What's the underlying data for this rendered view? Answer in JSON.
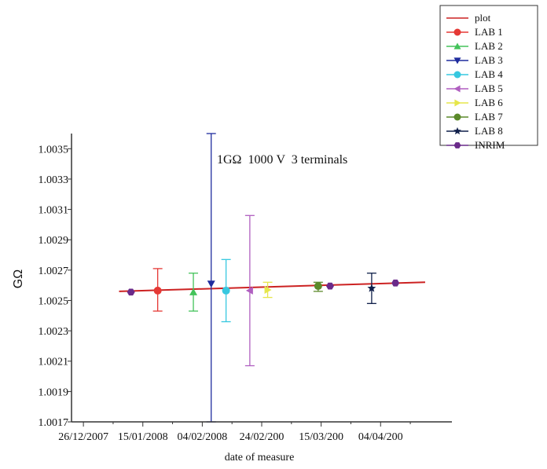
{
  "chart_data": {
    "type": "scatter",
    "title": "",
    "annotation": "1GΩ  1000 V  3 terminals",
    "xlabel": "date of measure",
    "ylabel": "GΩ",
    "x_tick_labels": [
      "26/12/2007",
      "15/01/2008",
      "04/02/2008",
      "24/02/200",
      "15/03/200",
      "04/04/200"
    ],
    "x_ticks": [
      "2007-12-26",
      "2008-01-15",
      "2008-02-04",
      "2008-02-24",
      "2008-03-15",
      "2008-04-04"
    ],
    "xlim": [
      "2007-12-22",
      "2008-04-28"
    ],
    "ylim": [
      1.0017,
      1.0036
    ],
    "y_ticks": [
      1.0017,
      1.0019,
      1.0021,
      1.0023,
      1.0025,
      1.0027,
      1.0029,
      1.0031,
      1.0033,
      1.0035
    ],
    "y_tick_labels": [
      "1.0017",
      "1.0019",
      "1.0021",
      "1.0023",
      "1.0025",
      "1.0027",
      "1.0029",
      "1.0031",
      "1.0033",
      "1.0035"
    ],
    "grid": false,
    "legend_position": "top-right",
    "fit_line": {
      "name": "plot",
      "color": "#cc2222",
      "x": [
        "2008-01-07",
        "2008-04-19"
      ],
      "y": [
        1.00256,
        1.00262
      ]
    },
    "series": [
      {
        "name": "LAB 1",
        "color": "#e53935",
        "marker": "circle",
        "x": [
          "2008-01-20"
        ],
        "y": [
          1.002565
        ],
        "err_low": [
          1.00243
        ],
        "err_high": [
          1.00271
        ]
      },
      {
        "name": "LAB 2",
        "color": "#43c35a",
        "marker": "triangle-up",
        "x": [
          "2008-02-01"
        ],
        "y": [
          1.002555
        ],
        "err_low": [
          1.00243
        ],
        "err_high": [
          1.00268
        ]
      },
      {
        "name": "LAB 3",
        "color": "#1f2c9e",
        "marker": "triangle-down",
        "x": [
          "2008-02-07"
        ],
        "y": [
          1.00261
        ],
        "err_low": [
          1.0017
        ],
        "err_high": [
          1.0036
        ]
      },
      {
        "name": "LAB 4",
        "color": "#37c8e0",
        "marker": "circle",
        "x": [
          "2008-02-12"
        ],
        "y": [
          1.002565
        ],
        "err_low": [
          1.00236
        ],
        "err_high": [
          1.00277
        ]
      },
      {
        "name": "LAB 5",
        "color": "#b05fc0",
        "marker": "triangle-left",
        "x": [
          "2008-02-20"
        ],
        "y": [
          1.002565
        ],
        "err_low": [
          1.00207
        ],
        "err_high": [
          1.00306
        ]
      },
      {
        "name": "LAB 6",
        "color": "#e6e64a",
        "marker": "triangle-right",
        "x": [
          "2008-02-26"
        ],
        "y": [
          1.00257
        ],
        "err_low": [
          1.00252
        ],
        "err_high": [
          1.00262
        ]
      },
      {
        "name": "LAB 7",
        "color": "#5b8a2a",
        "marker": "circle",
        "x": [
          "2008-03-14"
        ],
        "y": [
          1.002595
        ],
        "err_low": [
          1.00256
        ],
        "err_high": [
          1.00262
        ]
      },
      {
        "name": "LAB 8",
        "color": "#0f1f4a",
        "marker": "star",
        "x": [
          "2008-04-01"
        ],
        "y": [
          1.00258
        ],
        "err_low": [
          1.00248
        ],
        "err_high": [
          1.00268
        ]
      },
      {
        "name": "INRIM",
        "color": "#6a2a8a",
        "marker": "hexagon",
        "x": [
          "2008-01-11",
          "2008-03-18",
          "2008-04-09"
        ],
        "y": [
          1.002555,
          1.002595,
          1.002615
        ],
        "err_low": [],
        "err_high": []
      }
    ]
  }
}
